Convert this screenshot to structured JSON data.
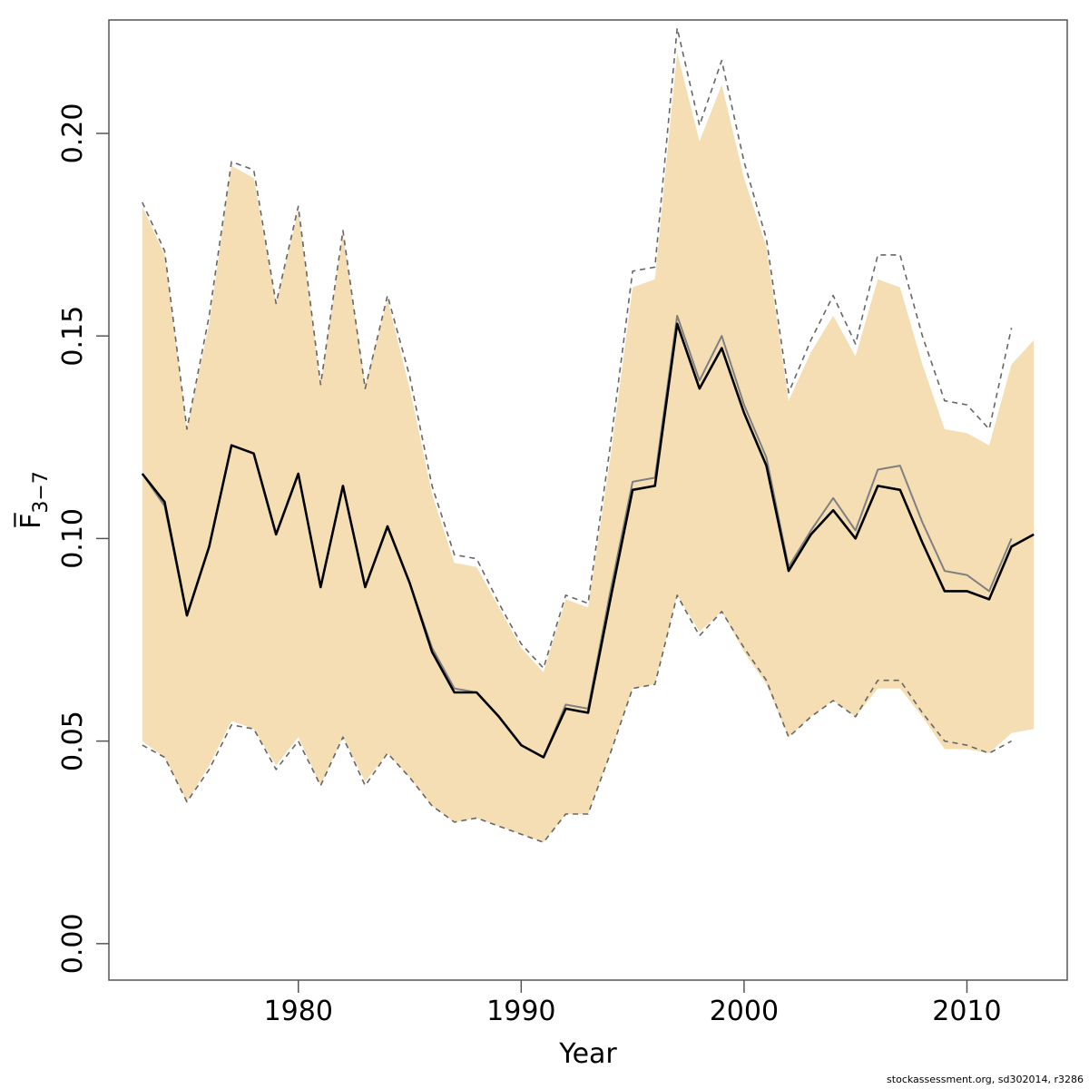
{
  "footnote": "stockassessment.org, sd302014, r3286",
  "colors": {
    "band": "#f5deb3",
    "estimate": "#000000",
    "previous": "#808080",
    "previous_ci": "#666666",
    "axis": "#555555"
  },
  "chart_data": {
    "type": "line",
    "xlabel": "Year",
    "ylabel": "F̅",
    "ylabel_subscript": "3−7",
    "xlim": [
      1971.5,
      2014.5
    ],
    "ylim": [
      -0.009,
      0.228
    ],
    "xticks": [
      1980,
      1990,
      2000,
      2010
    ],
    "xtick_labels": [
      "1980",
      "1990",
      "2000",
      "2010"
    ],
    "yticks": [
      0.0,
      0.05,
      0.1,
      0.15,
      0.2
    ],
    "ytick_labels": [
      "0.00",
      "0.05",
      "0.10",
      "0.15",
      "0.20"
    ],
    "grid": false,
    "legend": "none",
    "x": [
      1973,
      1974,
      1975,
      1976,
      1977,
      1978,
      1979,
      1980,
      1981,
      1982,
      1983,
      1984,
      1985,
      1986,
      1987,
      1988,
      1989,
      1990,
      1991,
      1992,
      1993,
      1994,
      1995,
      1996,
      1997,
      1998,
      1999,
      2000,
      2001,
      2002,
      2003,
      2004,
      2005,
      2006,
      2007,
      2008,
      2009,
      2010,
      2011,
      2012,
      2013
    ],
    "series": [
      {
        "role": "confidence-band",
        "lower": [
          0.05,
          0.046,
          0.035,
          0.044,
          0.055,
          0.053,
          0.044,
          0.051,
          0.039,
          0.051,
          0.04,
          0.047,
          0.041,
          0.034,
          0.03,
          0.031,
          0.029,
          0.027,
          0.025,
          0.032,
          0.032,
          0.047,
          0.063,
          0.064,
          0.086,
          0.077,
          0.082,
          0.072,
          0.064,
          0.051,
          0.056,
          0.06,
          0.056,
          0.063,
          0.063,
          0.056,
          0.048,
          0.048,
          0.047,
          0.052,
          0.053
        ],
        "upper": [
          0.182,
          0.17,
          0.127,
          0.153,
          0.192,
          0.189,
          0.158,
          0.181,
          0.138,
          0.175,
          0.138,
          0.159,
          0.137,
          0.111,
          0.094,
          0.093,
          0.083,
          0.073,
          0.067,
          0.085,
          0.083,
          0.12,
          0.162,
          0.164,
          0.22,
          0.198,
          0.212,
          0.189,
          0.172,
          0.134,
          0.146,
          0.155,
          0.145,
          0.164,
          0.162,
          0.143,
          0.127,
          0.126,
          0.123,
          0.143,
          0.149
        ]
      },
      {
        "role": "previous-estimate",
        "values": [
          0.116,
          0.108,
          0.081,
          0.098,
          0.123,
          0.121,
          0.101,
          0.116,
          0.088,
          0.113,
          0.088,
          0.103,
          0.089,
          0.073,
          0.063,
          0.062,
          0.056,
          0.049,
          0.046,
          0.059,
          0.058,
          0.087,
          0.114,
          0.115,
          0.155,
          0.139,
          0.15,
          0.133,
          0.12,
          0.093,
          0.102,
          0.11,
          0.102,
          0.117,
          0.118,
          0.104,
          0.092,
          0.091,
          0.087,
          0.1,
          null
        ]
      },
      {
        "role": "previous-ci-upper",
        "values": [
          0.183,
          0.171,
          0.127,
          0.155,
          0.193,
          0.191,
          0.158,
          0.182,
          0.138,
          0.176,
          0.137,
          0.16,
          0.14,
          0.113,
          0.096,
          0.095,
          0.084,
          0.074,
          0.068,
          0.086,
          0.084,
          0.123,
          0.166,
          0.167,
          0.226,
          0.202,
          0.218,
          0.193,
          0.174,
          0.136,
          0.149,
          0.16,
          0.148,
          0.17,
          0.17,
          0.15,
          0.134,
          0.133,
          0.127,
          0.152,
          null
        ]
      },
      {
        "role": "previous-ci-lower",
        "values": [
          0.049,
          0.046,
          0.035,
          0.043,
          0.054,
          0.053,
          0.043,
          0.05,
          0.039,
          0.051,
          0.039,
          0.047,
          0.041,
          0.034,
          0.03,
          0.031,
          0.029,
          0.027,
          0.025,
          0.032,
          0.032,
          0.047,
          0.063,
          0.064,
          0.086,
          0.076,
          0.082,
          0.073,
          0.065,
          0.051,
          0.056,
          0.06,
          0.056,
          0.065,
          0.065,
          0.057,
          0.05,
          0.049,
          0.047,
          0.05,
          null
        ]
      },
      {
        "role": "estimate",
        "values": [
          0.116,
          0.109,
          0.081,
          0.098,
          0.123,
          0.121,
          0.101,
          0.116,
          0.088,
          0.113,
          0.088,
          0.103,
          0.089,
          0.072,
          0.062,
          0.062,
          0.056,
          0.049,
          0.046,
          0.058,
          0.057,
          0.085,
          0.112,
          0.113,
          0.153,
          0.137,
          0.147,
          0.131,
          0.118,
          0.092,
          0.101,
          0.107,
          0.1,
          0.113,
          0.112,
          0.099,
          0.087,
          0.087,
          0.085,
          0.098,
          0.101
        ]
      }
    ]
  }
}
